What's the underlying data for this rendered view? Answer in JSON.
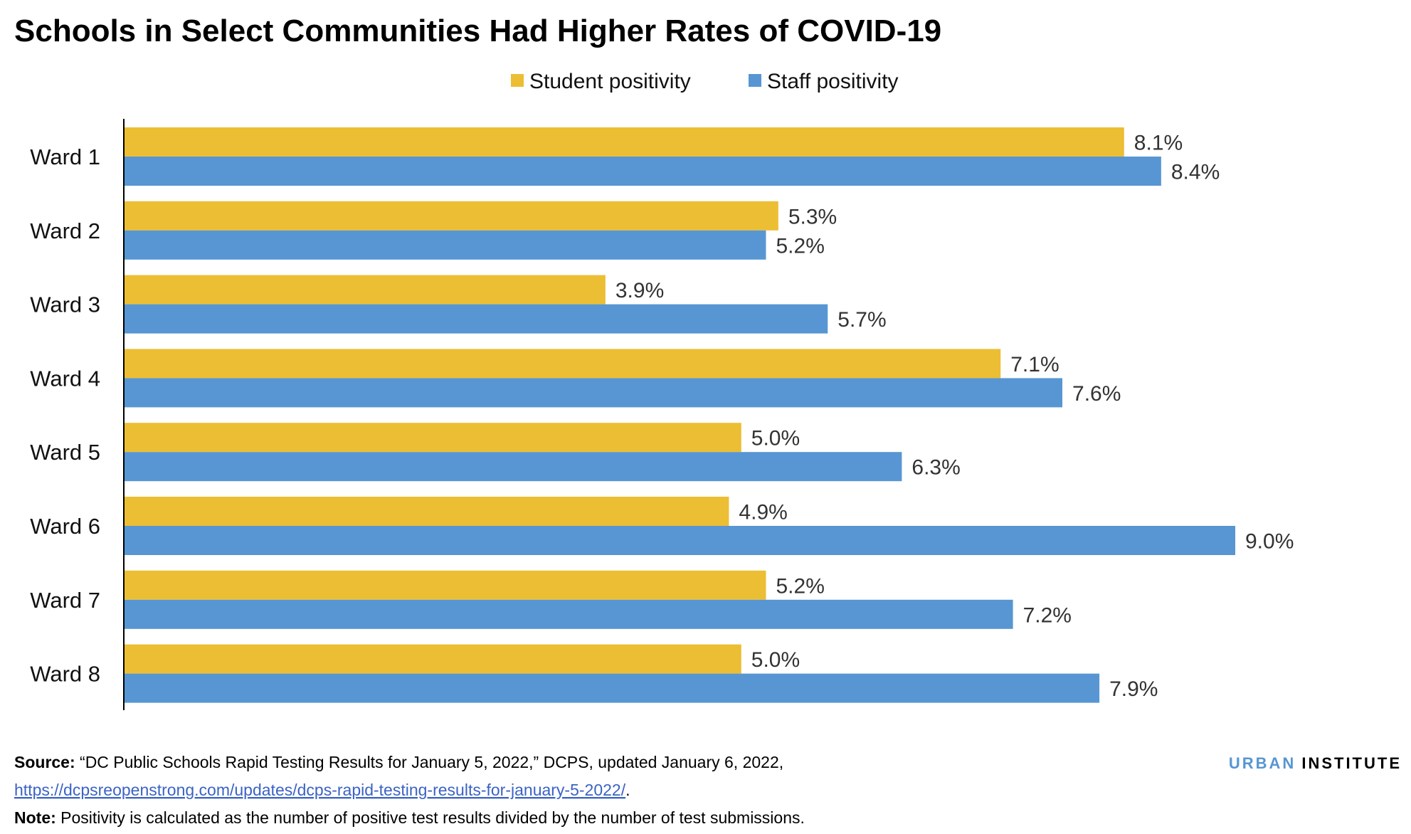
{
  "chart_data": {
    "type": "bar",
    "orientation": "horizontal",
    "title": "Schools in Select Communities Had Higher Rates of COVID-19",
    "categories": [
      "Ward 1",
      "Ward 2",
      "Ward 3",
      "Ward 4",
      "Ward 5",
      "Ward 6",
      "Ward 7",
      "Ward 8"
    ],
    "series": [
      {
        "name": "Student positivity",
        "color": "#ECBE33",
        "values": [
          8.1,
          5.3,
          3.9,
          7.1,
          5.0,
          4.9,
          5.2,
          5.0
        ],
        "labels": [
          "8.1%",
          "5.3%",
          "3.9%",
          "7.1%",
          "5.0%",
          "4.9%",
          "5.2%",
          "5.0%"
        ]
      },
      {
        "name": "Staff positivity",
        "color": "#5796D2",
        "values": [
          8.4,
          5.2,
          5.7,
          7.6,
          6.3,
          9.0,
          7.2,
          7.9
        ],
        "labels": [
          "8.4%",
          "5.2%",
          "5.7%",
          "7.6%",
          "6.3%",
          "9.0%",
          "7.2%",
          "7.9%"
        ]
      }
    ],
    "xlim": [
      0,
      9.0
    ],
    "grid": false,
    "legend": "top-center",
    "unit": "%"
  },
  "footer": {
    "source_label": "Source:",
    "source_text": " “DC Public Schools Rapid Testing Results for January 5, 2022,” DCPS,  updated January 6, 2022,",
    "link": "https://dcpsreopenstrong.com/updates/dcps-rapid-testing-results-for-january-5-2022/",
    "link_after": ".",
    "note_label": "Note:",
    "note_text": " Positivity is calculated as the number of positive test results divided by the number of test submissions."
  },
  "logo": {
    "part1": "URBAN",
    "part2": "INSTITUTE",
    "color1": "#5796D2",
    "color2": "#000000"
  }
}
